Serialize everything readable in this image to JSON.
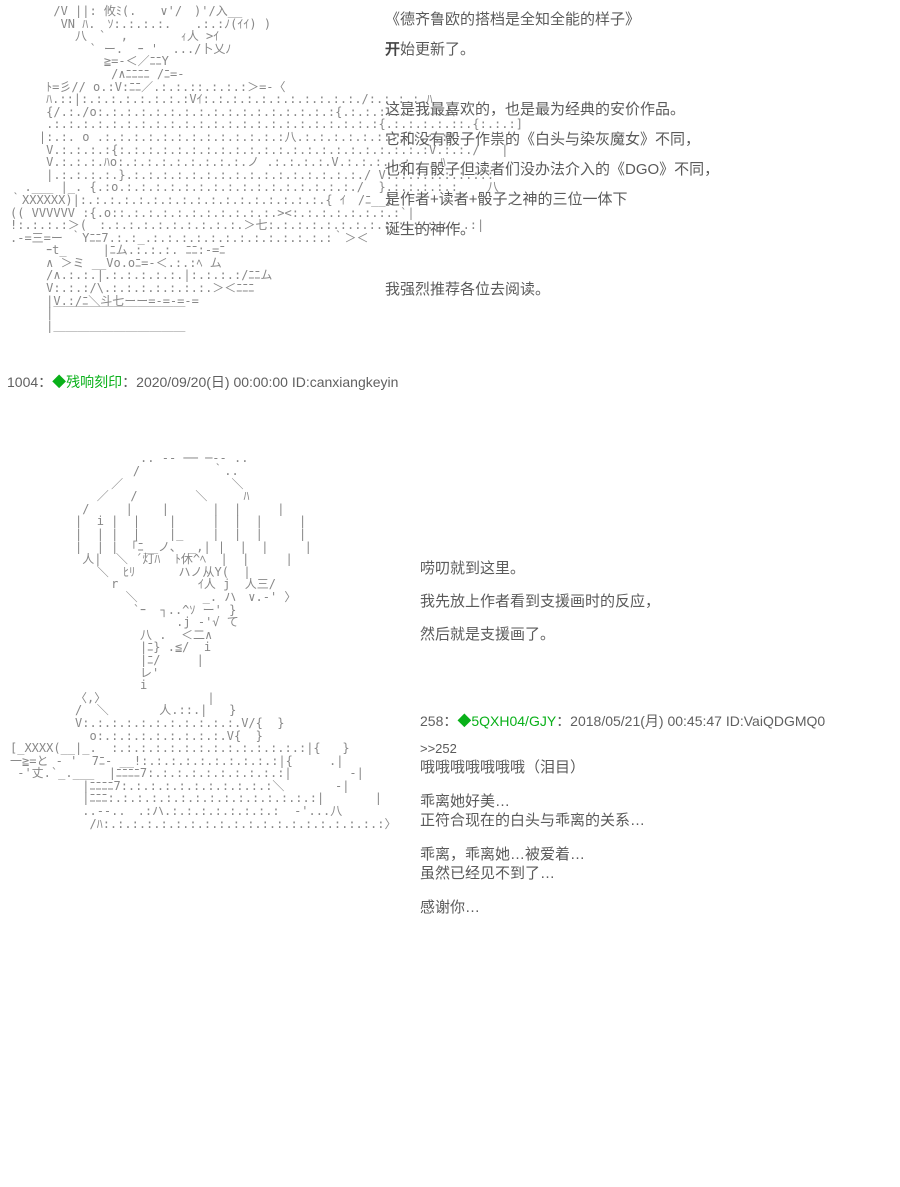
{
  "colors": {
    "background": "#ffffff",
    "text_primary": "#5a5a5a",
    "text_meta": "#606060",
    "author_green": "#09b019",
    "ascii_gray": "#888888"
  },
  "post1": {
    "ascii": "      /V ||: 攸ﾐ(.　　∨'/　)'/入__\n       VN ﾊ.　ｿ:.:.:.:.　　.:.:ﾉ(ｲｲ) )\n         八　`  ,    　　ｨ人 >ｲ\n           ` ー.  ｰ '  .../卜乂ﾉ\n             ≧=-＜／ﾆﾆY\n              /∧ﾆﾆﾆﾆ /ﾆ=-\n     ﾄ=彡// o.:V:ﾆﾆ／.:.:.::.:.:.:＞=-〈\n     ﾊ.::|:.:.:.:.:.:.:.:Vｲ:.:.:.:.:.:.:.:.:.:.:./:.:.:.:.ﾊ\n     {/.:./o:.:.:.:.:.:.:.:.:.:.:.:.:.:.:.:.:{.:.:.:.:.:.:.:ム\n     .:.:.:.:.:.:.:.:.:.:.:.:.:.:.:.:.:.:.:.:.:.:.:{.:.:.:.:.::.{:.:.:]\n    |:.:. o .:.:.:.:.:.:.:.:.:.:.:.:.:八.:.:.:.:.:.:.:.{:.:.:ﾊ\n     V.:.:.:.:{:.:.:.:.:.:.:.:.:.:.:.:.:.:.:.:.:.:.:.:.:.:V.:.:./   |\n     V.:.:.:.ﾊo:.:.:.:.:.:.:.:.:.ノ .:.:.:.:.V.:.:.:.:.:    ﾊ\n     |.:.:.:.:.}.:.:.:.:.:.:.:.:.:.:.:.:.:.:.:.:./ V:.:.:.:.:.:.:.:\n  .___ |_. {.:o.:.:.:.:.:.:.:.:.:.:.:.:.:.:.:.:./  }.:.:.:.:.:    八\n｀XXXXXX)|:.:.:.:.:.:.:.:.:.:.:.:.:.:.:.:.:.{ ｲ　/ﾆ__}\n(( VVVVVV :{.o::.:.:.:.:.:.:.:.:.:.:.><:.:.:.:.:.:.:.:`|\n!:.:.:.:＞(　:.:.:.:.:.:.:.:.:.:.＞七:.:.:.:.:.:.:.:.:.:.:.:.:.:.:|\n.-=三=ー ｀Yﾆﾆ7.:.:_.:.:.:.:.:.:.:.:.:.:.:.:.:｀＞＜\n     ｰt_　　　|ﾆム.:.:.:. ﾆﾆ:-=ﾆ\n     ∧ ＞ミ __Vo.oﾆ=-＜.:.:ﾍ ム\n     /∧.:.:.|.:.:.:.:.:.|:.:.:.:/ﾆﾆム\n     V:.:.:/\\.:.:.:.:.:.:.:.＞＜ﾆﾆﾆ\n     |V.:/ﾆ＼斗七ーー=-=-=-=\n     |￣￣￣￣￣￣￣￣￣￣￣\n     |＿＿＿＿＿＿＿＿＿＿＿",
    "text_lines": [
      "《德齐鲁欧的搭档是全知全能的样子》",
      "开始更新了。",
      "",
      "这是我最喜欢的，也是最为经典的安价作品。",
      "它和没有骰子作祟的《白头与染灰魔女》不同，",
      "也和有骰子但读者们没办法介入的《DGO》不同，",
      "是作者+读者+骰子之神的三位一体下",
      "诞生的神作。",
      "",
      "我强烈推荐各位去阅读。"
    ]
  },
  "meta1": {
    "number": "1004",
    "colon": "：",
    "author_mark": "◆残响刻印",
    "timestamp": "：2020/09/20(日) 00:00:00 ID:canxiangkeyin"
  },
  "post2": {
    "ascii": "                  .. -- ── ─-- ..\n                 /          ｀..\n              ／               ＼\n            ／   /        ＼     ﾊ\n          /     |    |      |  |     |\n         |  i |  |    |     |  |  |     |\n         |  | |  |    |_    |  |  |     |\n         |  | | 「ﾆ__ノ、 _,| |  |  |     |\n          人|  ＼ ´灯ﾊ  ﾄ休^ﾍ  |  |     |\n            ＼  ﾋﾘ      ハノ从Y(  |\n              r           ｲ人 j  人三/\n                ＼         _. ハ　∨.-' 〉\n                 `ｰ  ┐..^ｿ ー' }\n                       .j -'√ て\n                  八 .  ＜二∧\n                  |ﾆ} .≦/  i\n                  |ﾆ/     |\n                  レ'\n                  i\n         〈,〉              |\n         /  ＼       人.::.|   }\n         V:.:.:.:.:.:.:.:.:.:.:.V/{  }\n           o:.:.:.:.:.:.:.:.:.V{  }\n[_XXXX(__|_.  :.:.:.:.:.:.:.:.:.:.:.:.:.:|{   }\n一≧=と - '  7ﾆ- __!:.:.:.:.:.:.:.:.:.:|{     .|\n -'丈.`_.___  |ﾆﾆﾆﾆ7:.:.:.:.:.:.:.:.:.:|        -|\n          |ﾆﾆﾆﾆ7:.:.:.:.:.:.:.:.:.:.:＼       -|\n          |ﾆﾆﾆ:.:.:.:.:.:.:.:.:.:.:.:.:.:.:|       |\n          ..--..　.:ハ.:.:.:.:.:.:.:.:  -'...八\n           /ﾊ:.:.:.:.:.:.:.:.:.:.:.:.:.:.:.:.:.:.:.:〉",
    "intro_lines": [
      "唠叨就到这里。",
      "我先放上作者看到支援画时的反应，",
      "然后就是支援画了。"
    ],
    "reply_meta": {
      "number": "258",
      "colon": "：",
      "author_mark": "◆5QXH04/GJY",
      "timestamp": "：2018/05/21(月) 00:45:47 ID:VaiQDGMQ0"
    },
    "reply": {
      "ref": ">>252",
      "line1": "哦哦哦哦哦哦哦（泪目）",
      "line2": "乖离她好美…",
      "line3": "正符合现在的白头与乖离的关系…",
      "line4": "乖离，乖离她…被爱着…",
      "line5": "虽然已经见不到了…",
      "line6": "感谢你…"
    }
  }
}
